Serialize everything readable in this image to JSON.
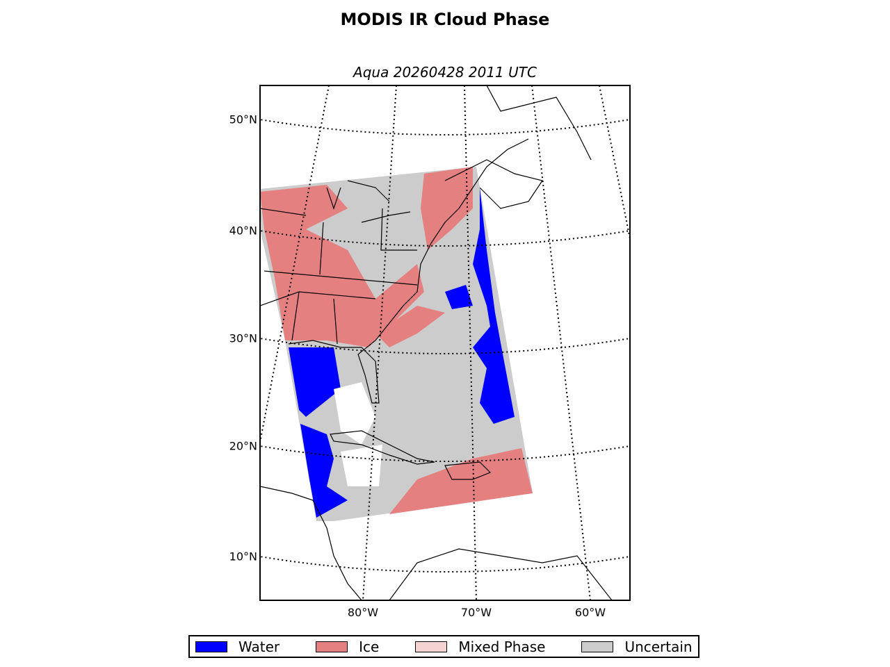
{
  "title": "MODIS IR Cloud Phase",
  "subtitle": "Aqua 20260428 2011 UTC",
  "lat_labels": [
    "50°N",
    "40°N",
    "30°N",
    "20°N",
    "10°N"
  ],
  "lon_labels": [
    "80°W",
    "70°W",
    "60°W"
  ],
  "legend": [
    {
      "label": "Water",
      "color": "#0000ff"
    },
    {
      "label": "Ice",
      "color": "#e58080"
    },
    {
      "label": "Mixed Phase",
      "color": "#f5d3d3"
    },
    {
      "label": "Uncertain",
      "color": "#cccccc"
    }
  ]
}
